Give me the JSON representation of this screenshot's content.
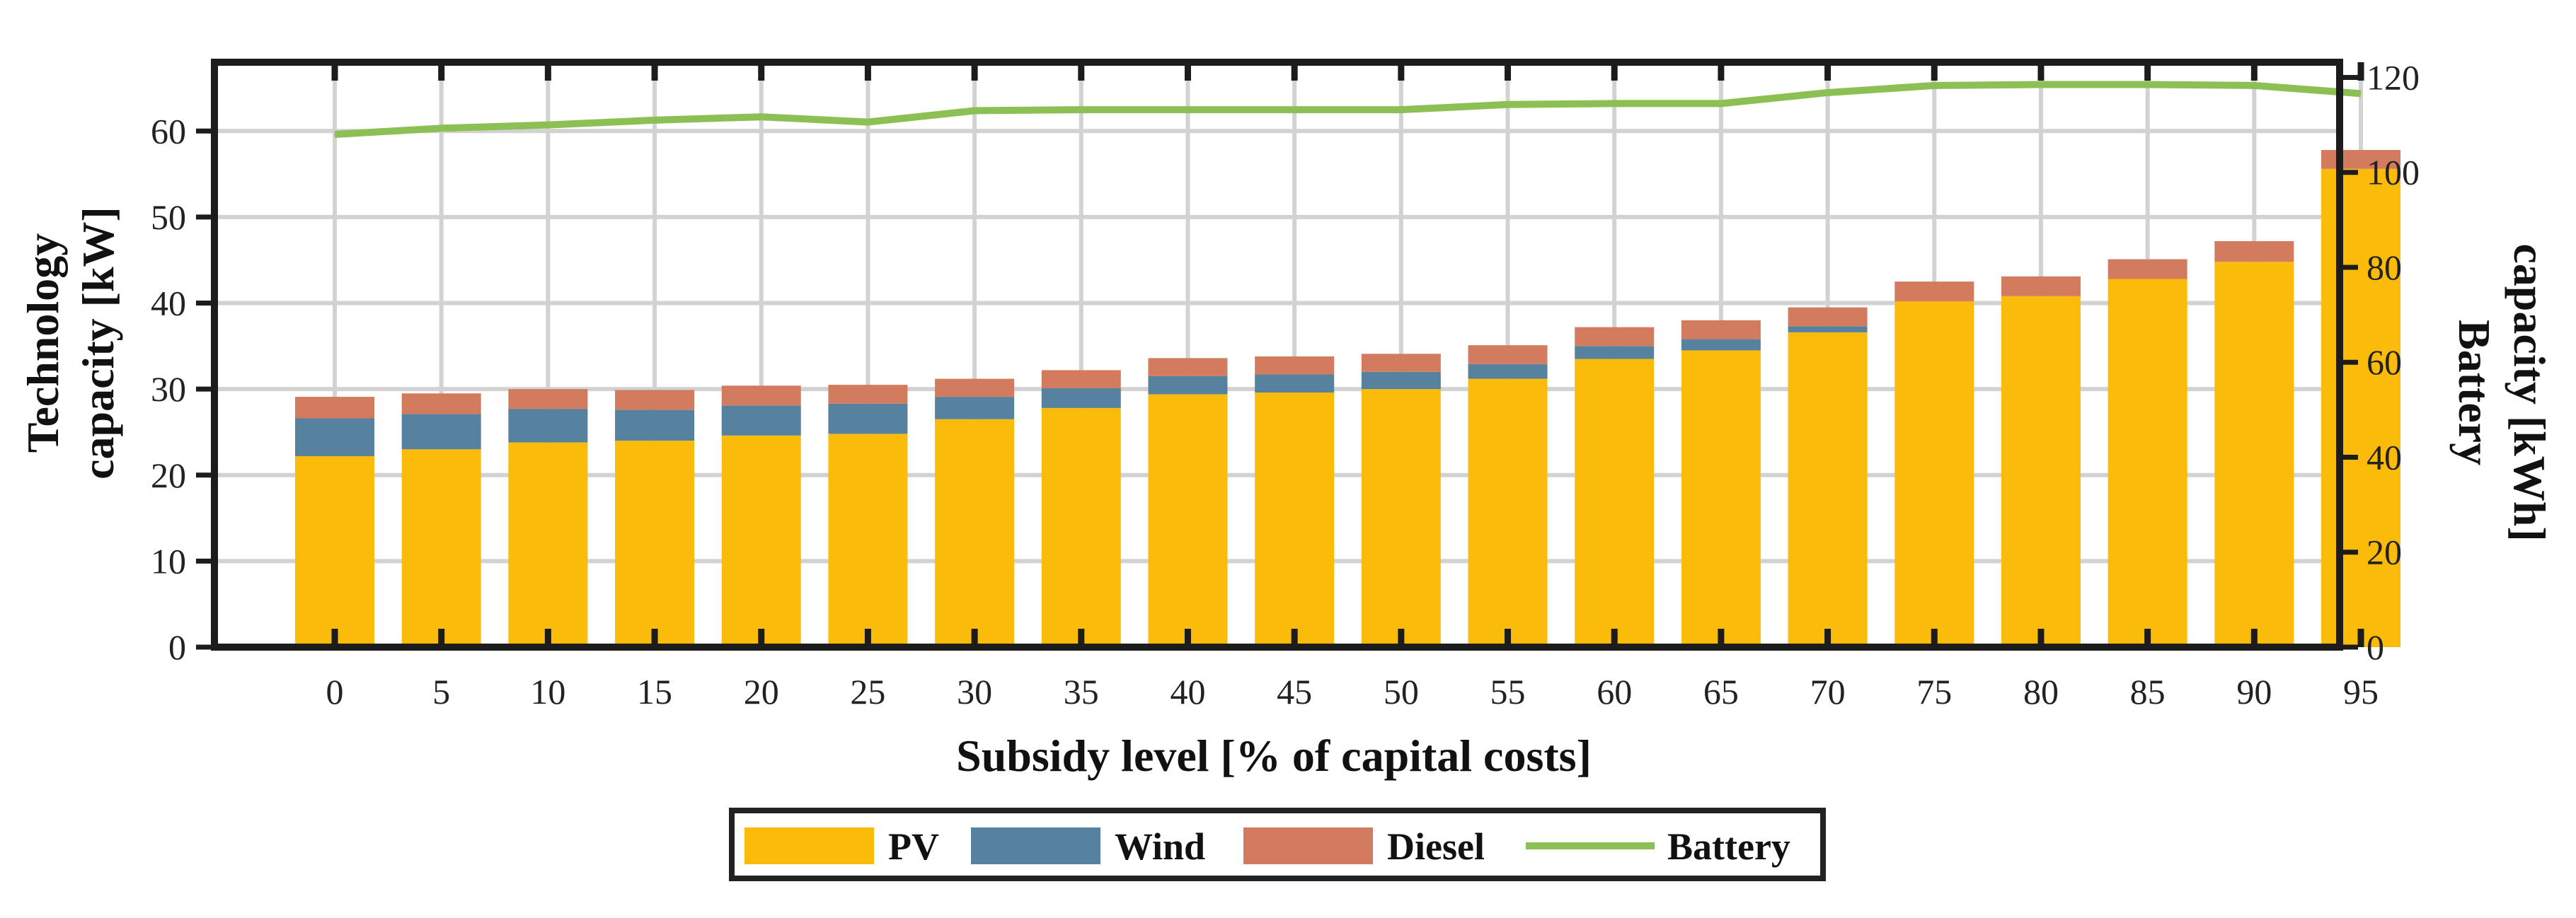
{
  "chart_data": {
    "type": "bar",
    "stacked": true,
    "secondary_type": "line",
    "categories": [
      "0",
      "5",
      "10",
      "15",
      "20",
      "25",
      "30",
      "35",
      "40",
      "45",
      "50",
      "55",
      "60",
      "65",
      "70",
      "75",
      "80",
      "85",
      "90",
      "95"
    ],
    "series": [
      {
        "name": "PV",
        "axis": "left",
        "color": "#FABB0A",
        "values": [
          22.2,
          23.0,
          23.8,
          24.0,
          24.6,
          24.8,
          26.5,
          27.8,
          29.4,
          29.6,
          30.0,
          31.2,
          33.5,
          34.5,
          36.6,
          40.2,
          40.8,
          42.8,
          44.8,
          55.6
        ]
      },
      {
        "name": "Wind",
        "axis": "left",
        "color": "#5682A0",
        "values": [
          4.4,
          4.1,
          3.9,
          3.6,
          3.5,
          3.5,
          2.6,
          2.3,
          2.1,
          2.1,
          2.0,
          1.7,
          1.5,
          1.3,
          0.7,
          0.0,
          0.0,
          0.0,
          0.0,
          0.0
        ]
      },
      {
        "name": "Diesel",
        "axis": "left",
        "color": "#D27B5F",
        "values": [
          2.5,
          2.4,
          2.3,
          2.3,
          2.3,
          2.2,
          2.1,
          2.1,
          2.1,
          2.1,
          2.1,
          2.2,
          2.2,
          2.2,
          2.2,
          2.3,
          2.3,
          2.3,
          2.4,
          2.2
        ]
      },
      {
        "name": "Battery",
        "axis": "right",
        "type": "line",
        "color": "#8CC055",
        "values": [
          108.0,
          109.3,
          110.0,
          111.0,
          111.7,
          110.6,
          113.0,
          113.2,
          113.2,
          113.2,
          113.2,
          114.3,
          114.5,
          114.5,
          116.8,
          118.3,
          118.5,
          118.5,
          118.3,
          116.6
        ]
      }
    ],
    "xlabel": "Subsidy level [% of capital costs]",
    "ylabel_line1": "Technology",
    "ylabel_line2": "capacity [kW]",
    "y2label_line1": "Battery",
    "y2label_line2": "capacity [kWh]",
    "ylim": [
      0,
      68
    ],
    "y2lim": [
      0,
      123.2
    ],
    "yticks": [
      0,
      10,
      20,
      30,
      40,
      50,
      60
    ],
    "y2ticks": [
      0,
      20,
      40,
      60,
      80,
      100,
      120
    ],
    "grid": true,
    "legend_position": "bottom-center",
    "legend": [
      "PV",
      "Wind",
      "Diesel",
      "Battery"
    ]
  }
}
